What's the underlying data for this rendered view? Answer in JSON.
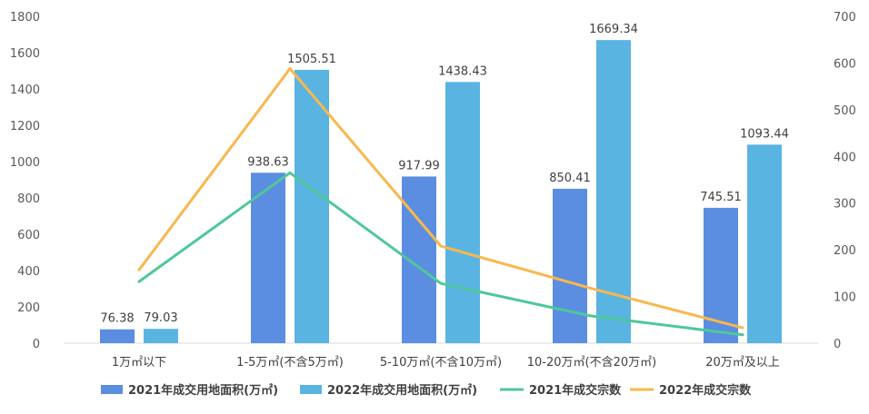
{
  "chart_data": {
    "type": "bar",
    "categories": [
      "1万㎡以下",
      "1-5万㎡(不含5万㎡)",
      "5-10万㎡(不含10万㎡)",
      "10-20万㎡(不含20万㎡)",
      "20万㎡及以上"
    ],
    "bar_series": [
      {
        "name": "2021年成交用地面积(万㎡)",
        "values": [
          76.38,
          938.63,
          917.99,
          850.41,
          745.51
        ],
        "labels": [
          "76.38",
          "938.63",
          "917.99",
          "850.41",
          "745.51"
        ],
        "color": "#5b8ee0"
      },
      {
        "name": "2022年成交用地面积(万㎡)",
        "values": [
          79.03,
          1505.51,
          1438.43,
          1669.34,
          1093.44
        ],
        "labels": [
          "79.03",
          "1505.51",
          "1438.43",
          "1669.34",
          "1093.44"
        ],
        "color": "#5ab4e2"
      }
    ],
    "line_series": [
      {
        "name": "2021年成交宗数",
        "values": [
          132,
          365,
          128,
          58,
          18
        ],
        "color": "#4fc79a"
      },
      {
        "name": "2022年成交宗数",
        "values": [
          157,
          588,
          208,
          117,
          33
        ],
        "color": "#f8b84e"
      }
    ],
    "y_left": {
      "min": 0,
      "max": 1800,
      "ticks": [
        "0",
        "200",
        "400",
        "600",
        "800",
        "1000",
        "1200",
        "1400",
        "1600",
        "1800"
      ]
    },
    "y_right": {
      "min": 0,
      "max": 700,
      "ticks": [
        "0",
        "100",
        "200",
        "300",
        "400",
        "500",
        "600",
        "700"
      ]
    },
    "legend_position": "bottom",
    "grid": false
  }
}
